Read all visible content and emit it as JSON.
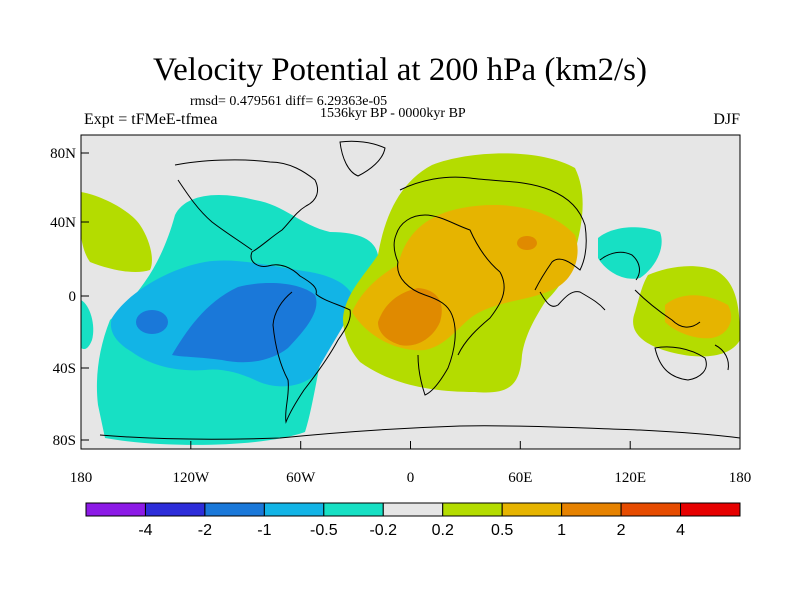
{
  "title": "Velocity Potential at 200 hPa (km2/s)",
  "subtitle_stats": "rmsd= 0.479561 diff= 6.29363e-05",
  "subtitle_period": "1536kyr BP - 0000kyr BP",
  "experiment": "Expt = tFMeE-tfmea",
  "season": "DJF",
  "lon_labels": [
    "180",
    "120W",
    "60W",
    "0",
    "60E",
    "120E",
    "180"
  ],
  "lat_labels": [
    "80N",
    "40N",
    "0",
    "40S",
    "80S"
  ],
  "colorbar": {
    "colors": [
      "#8c1ae6",
      "#2d2dd9",
      "#1a78d9",
      "#12b4e6",
      "#17e0c4",
      "#e6e6e6",
      "#b4dc00",
      "#e6b400",
      "#e68200",
      "#e64b00",
      "#e60000"
    ],
    "labels": [
      "-4",
      "-2",
      "-1",
      "-0.5",
      "-0.2",
      "0.2",
      "0.5",
      "1",
      "2",
      "4"
    ]
  }
}
